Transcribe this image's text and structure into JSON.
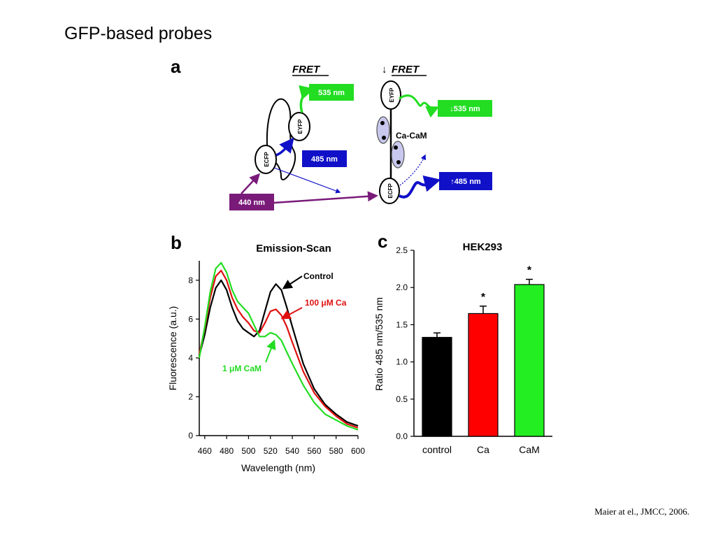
{
  "slide": {
    "title": "GFP-based probes",
    "citation": "Maier at el., JMCC, 2006."
  },
  "panel_a": {
    "letter": "a",
    "left_header": "FRET",
    "right_header": "FRET",
    "right_header_arrow": "↓",
    "ecfp": "ECFP",
    "eyfp": "EYFP",
    "excitation_box": "440 nm",
    "left_em_green": "535 nm",
    "left_em_blue": "485 nm",
    "right_em_green": "↓535 nm",
    "right_em_blue": "↑485 nm",
    "cacam": "Ca-CaM",
    "colors": {
      "purple": "#7a1b7a",
      "green": "#22dd22",
      "blue": "#1010c8",
      "lavender": "#c8c8ee"
    }
  },
  "chart_data": [
    {
      "type": "line",
      "letter": "b",
      "title": "Emission-Scan",
      "xlabel": "Wavelength (nm)",
      "ylabel": "Fluorescence (a.u.)",
      "xlim": [
        455,
        600
      ],
      "ylim": [
        0,
        9
      ],
      "xticks": [
        460,
        480,
        500,
        520,
        540,
        560,
        580,
        600
      ],
      "yticks": [
        0,
        2,
        4,
        6,
        8
      ],
      "series": [
        {
          "name": "Control",
          "color": "#000000",
          "x": [
            455,
            460,
            465,
            470,
            475,
            480,
            485,
            490,
            495,
            500,
            505,
            510,
            515,
            520,
            525,
            530,
            535,
            540,
            550,
            560,
            570,
            580,
            590,
            600
          ],
          "y": [
            4.1,
            5.2,
            6.6,
            7.6,
            8.0,
            7.5,
            6.6,
            5.9,
            5.5,
            5.3,
            5.1,
            5.4,
            6.4,
            7.4,
            7.8,
            7.5,
            6.6,
            5.6,
            3.7,
            2.4,
            1.6,
            1.1,
            0.7,
            0.5
          ]
        },
        {
          "name": "100 μM Ca",
          "color": "#e01010",
          "x": [
            455,
            460,
            465,
            470,
            475,
            480,
            485,
            490,
            495,
            500,
            505,
            510,
            515,
            520,
            525,
            530,
            535,
            540,
            550,
            560,
            570,
            580,
            590,
            600
          ],
          "y": [
            4.2,
            5.5,
            7.1,
            8.2,
            8.5,
            8.0,
            7.1,
            6.5,
            6.1,
            5.8,
            5.4,
            5.3,
            5.8,
            6.4,
            6.5,
            6.2,
            5.6,
            4.8,
            3.3,
            2.2,
            1.5,
            1.0,
            0.6,
            0.4
          ]
        },
        {
          "name": "1 μM CaM",
          "color": "#22dd22",
          "x": [
            455,
            460,
            465,
            470,
            475,
            480,
            485,
            490,
            495,
            500,
            505,
            510,
            515,
            520,
            525,
            530,
            535,
            540,
            550,
            560,
            570,
            580,
            590,
            600
          ],
          "y": [
            4.0,
            5.6,
            7.4,
            8.6,
            8.9,
            8.4,
            7.5,
            6.9,
            6.6,
            6.3,
            5.7,
            5.1,
            5.1,
            5.3,
            5.2,
            4.9,
            4.3,
            3.7,
            2.6,
            1.7,
            1.1,
            0.8,
            0.5,
            0.3
          ]
        }
      ]
    },
    {
      "type": "bar",
      "letter": "c",
      "title": "HEK293",
      "xlabel": "",
      "ylabel": "Ratio 485 nm/535 nm",
      "ylim": [
        0,
        2.5
      ],
      "yticks": [
        "0.0",
        "0.5",
        "1.0",
        "1.5",
        "2.0",
        "2.5"
      ],
      "categories": [
        "control",
        "Ca",
        "CaM"
      ],
      "values": [
        1.33,
        1.65,
        2.04
      ],
      "errors": [
        0.06,
        0.1,
        0.07
      ],
      "significance": [
        "",
        "*",
        "*"
      ],
      "colors": [
        "#000000",
        "#ff0000",
        "#22ee22"
      ]
    }
  ]
}
